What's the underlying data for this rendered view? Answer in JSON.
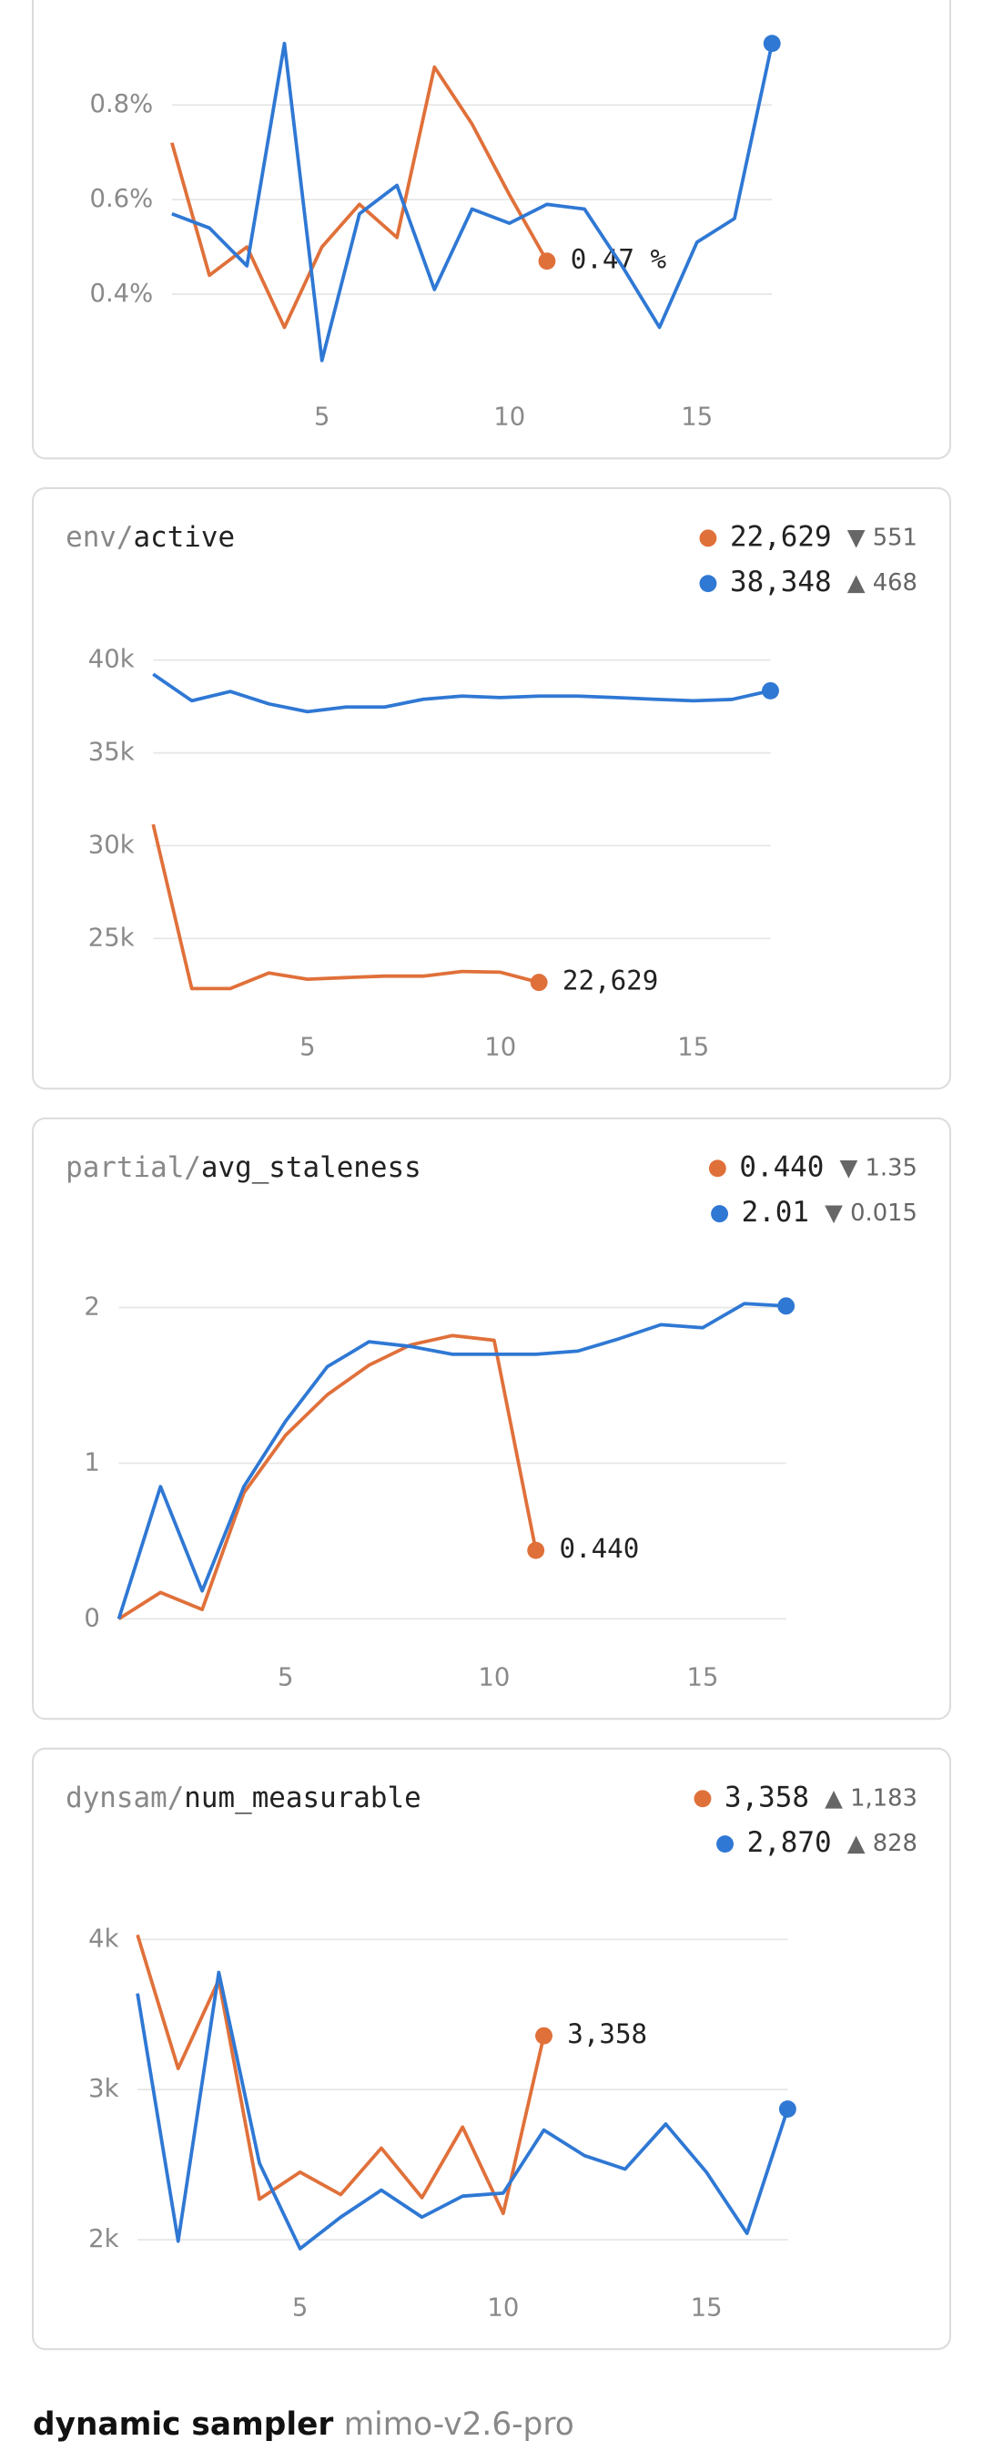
{
  "chart_data": [
    {
      "type": "line",
      "x": [
        1,
        2,
        3,
        4,
        5,
        6,
        7,
        8,
        9,
        10,
        11,
        12,
        13,
        14,
        15,
        16,
        17
      ],
      "xlim": [
        1,
        17
      ],
      "xticks": [
        5,
        10,
        15
      ],
      "ylim": [
        0.25,
        0.95
      ],
      "yticks": [
        {
          "value": 0.4,
          "label": "0.4%"
        },
        {
          "value": 0.6,
          "label": "0.6%"
        },
        {
          "value": 0.8,
          "label": "0.8%"
        }
      ],
      "grid": true,
      "series": [
        {
          "color": "#e0703a",
          "end_label": true,
          "values": [
            0.72,
            0.44,
            0.5,
            0.33,
            0.5,
            0.59,
            0.52,
            0.88,
            0.76,
            0.61,
            0.47,
            null,
            null,
            null,
            null,
            null,
            null
          ],
          "value_labels": [
            null,
            null,
            null,
            null,
            null,
            null,
            null,
            null,
            null,
            null,
            "0.47 %",
            null,
            null,
            null,
            null,
            null,
            null
          ]
        },
        {
          "color": "#2f78d4",
          "values": [
            0.57,
            0.54,
            0.46,
            0.93,
            0.26,
            0.57,
            0.63,
            0.41,
            0.58,
            0.55,
            0.59,
            0.58,
            0.46,
            0.33,
            0.51,
            0.56,
            0.93
          ]
        }
      ]
    },
    {
      "type": "line",
      "title_prefix": "env/",
      "title": "active",
      "x": [
        1,
        2,
        3,
        4,
        5,
        6,
        7,
        8,
        9,
        10,
        11,
        12,
        13,
        14,
        15,
        16,
        17
      ],
      "xlim": [
        1,
        17
      ],
      "xticks": [
        5,
        10,
        15
      ],
      "ylim": [
        21000,
        41000
      ],
      "yticks": [
        {
          "value": 25000,
          "label": "25k"
        },
        {
          "value": 30000,
          "label": "30k"
        },
        {
          "value": 35000,
          "label": "35k"
        },
        {
          "value": 40000,
          "label": "40k"
        }
      ],
      "grid": true,
      "series": [
        {
          "color": "#e0703a",
          "end_label": true,
          "delta": "▼ 551",
          "values": [
            31150,
            22300,
            22300,
            23140,
            22800,
            22890,
            22970,
            22970,
            23220,
            23180,
            22629,
            null,
            null,
            null,
            null,
            null,
            null
          ],
          "value_labels": [
            null,
            null,
            null,
            null,
            null,
            null,
            null,
            null,
            null,
            null,
            "22,629",
            null,
            null,
            null,
            null,
            null,
            null
          ]
        },
        {
          "color": "#2f78d4",
          "delta": "▲ 468",
          "values": [
            39240,
            37810,
            38310,
            37640,
            37220,
            37470,
            37470,
            37890,
            38060,
            37980,
            38060,
            38060,
            37980,
            37890,
            37810,
            37880,
            38348
          ],
          "value_labels": [
            null,
            null,
            null,
            null,
            null,
            null,
            null,
            null,
            null,
            null,
            null,
            null,
            null,
            null,
            null,
            null,
            "38,348"
          ]
        }
      ]
    },
    {
      "type": "line",
      "title_prefix": "partial/",
      "title": "avg_staleness",
      "x": [
        1,
        2,
        3,
        4,
        5,
        6,
        7,
        8,
        9,
        10,
        11,
        12,
        13,
        14,
        15,
        16,
        17
      ],
      "xlim": [
        1,
        17
      ],
      "xticks": [
        5,
        10,
        15
      ],
      "ylim": [
        -0.1,
        2.3
      ],
      "yticks": [
        0,
        1,
        2
      ],
      "grid": true,
      "series": [
        {
          "color": "#e0703a",
          "end_label": true,
          "delta": "▼ 1.35",
          "values": [
            0,
            0.17,
            0.06,
            0.81,
            1.18,
            1.44,
            1.63,
            1.76,
            1.82,
            1.79,
            0.44,
            null,
            null,
            null,
            null,
            null,
            null
          ],
          "value_labels": [
            null,
            null,
            null,
            null,
            null,
            null,
            null,
            null,
            null,
            null,
            "0.440",
            null,
            null,
            null,
            null,
            null,
            null
          ]
        },
        {
          "color": "#2f78d4",
          "delta": "▼ 0.015",
          "values": [
            0,
            0.85,
            0.18,
            0.85,
            1.27,
            1.62,
            1.78,
            1.75,
            1.7,
            1.7,
            1.7,
            1.72,
            1.8,
            1.89,
            1.87,
            2.025,
            2.01
          ],
          "value_labels": [
            null,
            null,
            null,
            null,
            null,
            null,
            null,
            null,
            null,
            null,
            null,
            null,
            null,
            null,
            null,
            null,
            "2.01"
          ]
        }
      ]
    },
    {
      "type": "line",
      "title_prefix": "dynsam/",
      "title": "num_measurable",
      "x": [
        1,
        2,
        3,
        4,
        5,
        6,
        7,
        8,
        9,
        10,
        11,
        12,
        13,
        14,
        15,
        16,
        17
      ],
      "xlim": [
        1,
        17
      ],
      "xticks": [
        5,
        10,
        15
      ],
      "ylim": [
        1800,
        4200
      ],
      "yticks": [
        {
          "value": 2000,
          "label": "2k"
        },
        {
          "value": 3000,
          "label": "3k"
        },
        {
          "value": 4000,
          "label": "4k"
        }
      ],
      "grid": true,
      "series": [
        {
          "color": "#e0703a",
          "end_label": true,
          "delta": "▲ 1,183",
          "values": [
            4030,
            3140,
            3730,
            2270,
            2450,
            2300,
            2610,
            2280,
            2750,
            2175,
            3358,
            null,
            null,
            null,
            null,
            null,
            null
          ],
          "value_labels": [
            null,
            null,
            null,
            null,
            null,
            null,
            null,
            null,
            null,
            null,
            "3,358",
            null,
            null,
            null,
            null,
            null,
            null
          ]
        },
        {
          "color": "#2f78d4",
          "delta": "▲ 828",
          "values": [
            3640,
            1990,
            3780,
            2510,
            1940,
            2150,
            2330,
            2150,
            2290,
            2310,
            2730,
            2560,
            2470,
            2770,
            2450,
            2042,
            2870
          ],
          "value_labels": [
            null,
            null,
            null,
            null,
            null,
            null,
            null,
            null,
            null,
            null,
            null,
            null,
            null,
            null,
            null,
            null,
            "2,870"
          ]
        }
      ]
    }
  ],
  "footer": {
    "title": "dynamic sampler",
    "model": "mimo-v2.6-pro"
  }
}
